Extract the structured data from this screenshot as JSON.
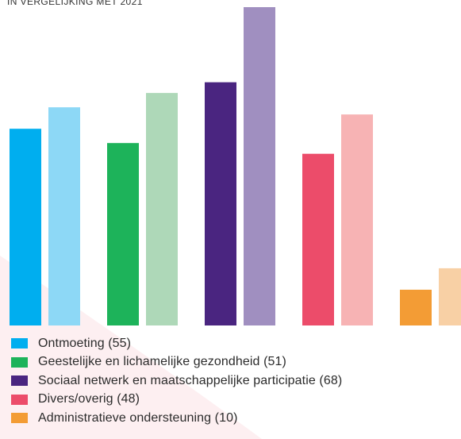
{
  "subtitle": "IN VERGELIJKING MET 2021",
  "legend": [
    {
      "label": "Ontmoeting (55)",
      "color": "#00AEEF"
    },
    {
      "label": "Geestelijke en lichamelijke gezondheid (51)",
      "color": "#1DB35A"
    },
    {
      "label": "Sociaal netwerk en maatschappelijke participatie (68)",
      "color": "#4A2580"
    },
    {
      "label": "Divers/overig (48)",
      "color": "#EC4C6A"
    },
    {
      "label": "Administratieve ondersteuning (10)",
      "color": "#F39C35"
    }
  ],
  "chart_data": {
    "type": "bar",
    "subtitle": "IN VERGELIJKING MET 2021",
    "categories": [
      "Ontmoeting",
      "Geestelijke en lichamelijke gezondheid",
      "Sociaal netwerk en maatschappelijke participatie",
      "Divers/overig",
      "Administratieve ondersteuning"
    ],
    "series": [
      {
        "values": [
          55,
          51,
          68,
          48,
          10
        ],
        "colors": [
          "#00AEEF",
          "#1DB35A",
          "#4A2580",
          "#EC4C6A",
          "#F39C35"
        ]
      },
      {
        "values": [
          61,
          65,
          89,
          59,
          16
        ],
        "colors": [
          "#8DD8F6",
          "#AED8B8",
          "#A08FC0",
          "#F7B3B4",
          "#F8D0A5"
        ]
      }
    ],
    "ylim": [
      0,
      89
    ],
    "grid": false,
    "legend_position": "bottom"
  }
}
